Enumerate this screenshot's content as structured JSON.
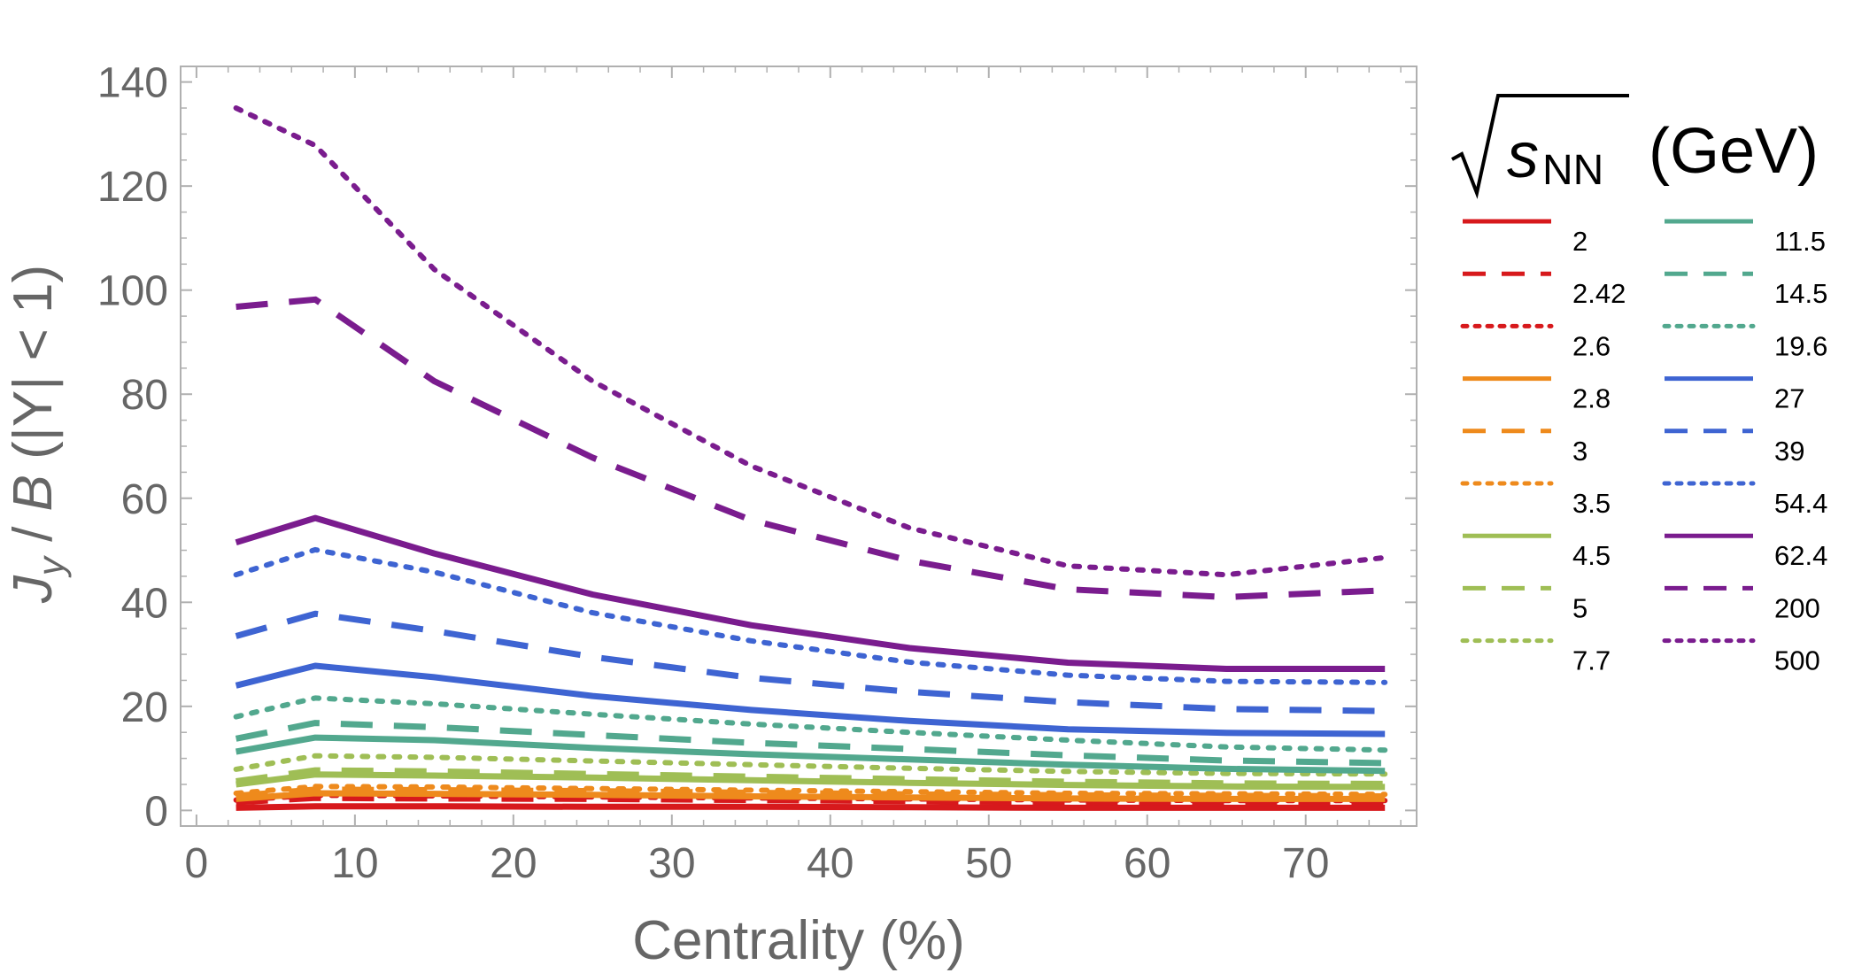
{
  "chart_data": {
    "type": "line",
    "title": "",
    "xlabel": "Centrality (%)",
    "ylabel": "J_y / B (|Y| < 1)",
    "ylabel_parts": {
      "j": "J",
      "y": "y",
      "rest": "/ ",
      "b": "B",
      "tail": " (|Y| < 1)"
    },
    "xlim": [
      -1,
      77
    ],
    "ylim": [
      -3,
      143
    ],
    "xticks": [
      0,
      10,
      20,
      30,
      40,
      50,
      60,
      70
    ],
    "yticks": [
      0,
      20,
      40,
      60,
      80,
      100,
      120,
      140
    ],
    "x": [
      2.5,
      7.5,
      15,
      25,
      35,
      45,
      55,
      65,
      75
    ],
    "legend_title": {
      "s": "s",
      "sub": "NN",
      "unit": "(GeV)"
    },
    "series": [
      {
        "name": "2",
        "color": "#d7191c",
        "dash": "solid",
        "values": [
          0.5,
          0.8,
          0.8,
          0.7,
          0.7,
          0.6,
          0.5,
          0.5,
          0.5
        ]
      },
      {
        "name": "2.42",
        "color": "#d7191c",
        "dash": "dashed",
        "values": [
          1.6,
          2.4,
          2.3,
          2.2,
          2.0,
          1.8,
          1.6,
          1.5,
          1.5
        ]
      },
      {
        "name": "2.6",
        "color": "#d7191c",
        "dash": "dotted",
        "values": [
          2.0,
          2.9,
          2.8,
          2.6,
          2.4,
          2.2,
          2.0,
          1.9,
          1.9
        ]
      },
      {
        "name": "2.8",
        "color": "#ee8a1c",
        "dash": "solid",
        "values": [
          2.2,
          3.3,
          3.2,
          3.0,
          2.7,
          2.5,
          2.3,
          2.2,
          2.2
        ]
      },
      {
        "name": "3",
        "color": "#ee8a1c",
        "dash": "dashed",
        "values": [
          2.8,
          4.0,
          3.9,
          3.7,
          3.4,
          3.1,
          2.9,
          2.8,
          2.7
        ]
      },
      {
        "name": "3.5",
        "color": "#ee8a1c",
        "dash": "dotted",
        "values": [
          3.3,
          4.6,
          4.5,
          4.2,
          3.9,
          3.6,
          3.3,
          3.2,
          3.1
        ]
      },
      {
        "name": "4.5",
        "color": "#9fbe55",
        "dash": "solid",
        "values": [
          5.0,
          6.9,
          6.7,
          6.3,
          5.8,
          5.3,
          4.9,
          4.6,
          4.5
        ]
      },
      {
        "name": "5",
        "color": "#9fbe55",
        "dash": "dashed",
        "values": [
          5.6,
          7.7,
          7.5,
          7.0,
          6.5,
          6.0,
          5.5,
          5.2,
          5.1
        ]
      },
      {
        "name": "7.7",
        "color": "#9fbe55",
        "dash": "dotted",
        "values": [
          7.9,
          10.5,
          10.2,
          9.5,
          8.8,
          8.1,
          7.5,
          7.1,
          7.0
        ]
      },
      {
        "name": "11.5",
        "color": "#52a88e",
        "dash": "solid",
        "values": [
          11.3,
          14.0,
          13.5,
          12.0,
          10.8,
          9.8,
          8.8,
          8.0,
          7.6
        ]
      },
      {
        "name": "14.5",
        "color": "#52a88e",
        "dash": "dashed",
        "values": [
          13.8,
          16.8,
          16.0,
          14.5,
          13.0,
          11.8,
          10.6,
          9.6,
          9.1
        ]
      },
      {
        "name": "19.6",
        "color": "#52a88e",
        "dash": "dotted",
        "values": [
          18.0,
          21.6,
          20.5,
          18.5,
          16.6,
          15.0,
          13.5,
          12.2,
          11.6
        ]
      },
      {
        "name": "27",
        "color": "#3e64d2",
        "dash": "solid",
        "values": [
          24.0,
          27.8,
          25.6,
          22.0,
          19.3,
          17.2,
          15.6,
          14.9,
          14.7
        ]
      },
      {
        "name": "39",
        "color": "#3e64d2",
        "dash": "dashed",
        "values": [
          33.5,
          37.8,
          34.5,
          29.5,
          25.5,
          22.8,
          20.8,
          19.5,
          19.1
        ]
      },
      {
        "name": "54.4",
        "color": "#3e64d2",
        "dash": "dotted",
        "values": [
          45.3,
          50.1,
          45.8,
          38.0,
          32.6,
          28.5,
          26.0,
          24.8,
          24.6
        ]
      },
      {
        "name": "62.4",
        "color": "#7a1c8e",
        "dash": "solid",
        "values": [
          51.5,
          56.2,
          49.4,
          41.5,
          35.6,
          31.2,
          28.4,
          27.2,
          27.2
        ]
      },
      {
        "name": "200",
        "color": "#7a1c8e",
        "dash": "dashed",
        "values": [
          96.8,
          98.2,
          82.5,
          67.8,
          55.8,
          48.0,
          42.5,
          41.0,
          42.3
        ]
      },
      {
        "name": "500",
        "color": "#7a1c8e",
        "dash": "dotted",
        "values": [
          135.0,
          127.8,
          104.0,
          82.5,
          66.2,
          54.3,
          47.0,
          45.3,
          48.6
        ]
      }
    ]
  }
}
